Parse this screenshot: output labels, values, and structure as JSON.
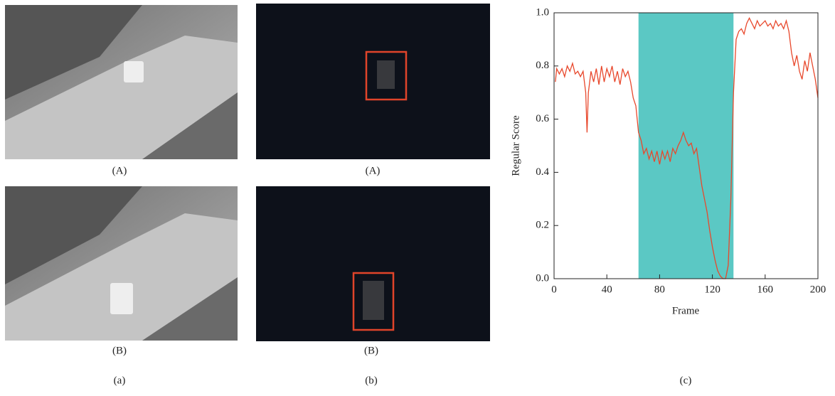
{
  "panels": [
    {
      "label": "(a)",
      "images": [
        "(A)",
        "(B)"
      ]
    },
    {
      "label": "(b)",
      "images": [
        "(A)",
        "(B)"
      ]
    },
    {
      "label": "(c)"
    }
  ],
  "chart_data": {
    "type": "line",
    "x_label": "Frame",
    "y_label": "Regular Score",
    "xlim": [
      0,
      200
    ],
    "ylim": [
      0,
      1
    ],
    "xticks": [
      0,
      40,
      80,
      120,
      160,
      200
    ],
    "yticks": [
      {
        "value": 0,
        "label": "0.0"
      },
      0.2,
      0.4,
      0.6,
      0.8,
      {
        "value": 1,
        "label": "1.0"
      }
    ],
    "highlight": {
      "range": [
        64,
        136
      ],
      "color": "#5bc8c4"
    },
    "x": [
      1,
      2,
      4,
      6,
      8,
      10,
      12,
      14,
      16,
      18,
      20,
      22,
      24,
      25,
      26,
      28,
      30,
      32,
      34,
      36,
      38,
      40,
      42,
      44,
      46,
      48,
      50,
      52,
      54,
      56,
      58,
      60,
      62,
      64,
      66,
      68,
      70,
      72,
      74,
      76,
      78,
      80,
      82,
      84,
      86,
      88,
      90,
      92,
      94,
      96,
      98,
      100,
      102,
      104,
      106,
      108,
      110,
      112,
      114,
      116,
      118,
      120,
      122,
      124,
      126,
      128,
      130,
      132,
      134,
      136,
      138,
      140,
      142,
      144,
      146,
      148,
      150,
      152,
      154,
      156,
      158,
      160,
      162,
      164,
      166,
      168,
      170,
      172,
      174,
      176,
      178,
      180,
      182,
      184,
      186,
      188,
      190,
      192,
      194,
      196,
      198,
      200
    ],
    "series": [
      {
        "color": "#e8482c",
        "values": [
          0.74,
          0.79,
          0.77,
          0.79,
          0.76,
          0.8,
          0.78,
          0.81,
          0.77,
          0.78,
          0.76,
          0.78,
          0.7,
          0.55,
          0.7,
          0.78,
          0.74,
          0.79,
          0.73,
          0.8,
          0.74,
          0.79,
          0.76,
          0.8,
          0.74,
          0.78,
          0.73,
          0.79,
          0.76,
          0.78,
          0.74,
          0.68,
          0.65,
          0.55,
          0.52,
          0.47,
          0.49,
          0.45,
          0.48,
          0.44,
          0.48,
          0.43,
          0.48,
          0.45,
          0.48,
          0.44,
          0.49,
          0.47,
          0.5,
          0.52,
          0.55,
          0.52,
          0.5,
          0.51,
          0.47,
          0.49,
          0.42,
          0.35,
          0.3,
          0.25,
          0.18,
          0.12,
          0.07,
          0.03,
          0.01,
          0.0,
          0.0,
          0.05,
          0.3,
          0.7,
          0.9,
          0.93,
          0.94,
          0.92,
          0.96,
          0.98,
          0.96,
          0.94,
          0.97,
          0.95,
          0.96,
          0.97,
          0.95,
          0.96,
          0.94,
          0.97,
          0.95,
          0.96,
          0.94,
          0.97,
          0.93,
          0.85,
          0.8,
          0.84,
          0.78,
          0.75,
          0.82,
          0.78,
          0.85,
          0.8,
          0.75,
          0.68
        ]
      }
    ]
  }
}
